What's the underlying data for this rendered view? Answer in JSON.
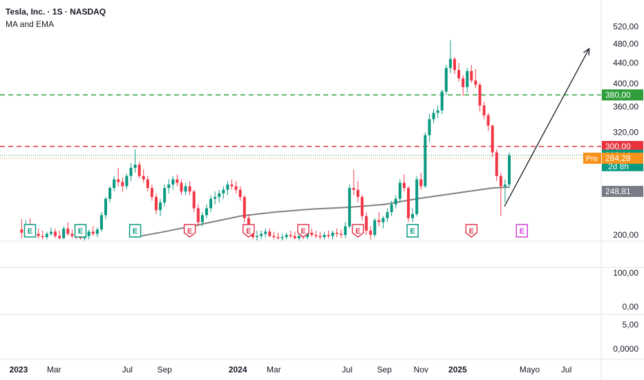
{
  "header": {
    "symbol_line": "Tesla, Inc. · 1S · NASDAQ",
    "indicator_label": "MA and EMA"
  },
  "colors": {
    "up": "#089981",
    "down": "#f23645",
    "ma": "#808080",
    "green_line": "#2e9d3a",
    "red_line": "#e8323c",
    "pre": "#f7931a",
    "earnings_green": "#089981",
    "earnings_red": "#e03a4e",
    "earnings_future": "#d03ed8",
    "last_price_label": "#089981",
    "ma_label": "#787b86"
  },
  "chart_data": {
    "type": "candlestick",
    "title": "Tesla, Inc. · 1S · NASDAQ",
    "interval": "1S",
    "exchange": "NASDAQ",
    "y_scale": "log",
    "ylim": [
      195,
      560
    ],
    "y_ticks": [
      200,
      360,
      400,
      440,
      480,
      520
    ],
    "y_tick_labels": [
      "200,00",
      "360,00",
      "400,00",
      "440,00",
      "480,00",
      "520,00"
    ],
    "y_tick_320": {
      "value": 320,
      "label": "320,00"
    },
    "lower_ticks": [
      "100,00",
      "0,00",
      "5,00",
      "0,0000"
    ],
    "x_labels": [
      {
        "label": "2023",
        "date": "2023-01-01",
        "bold": true
      },
      {
        "label": "Mar",
        "date": "2023-03-01",
        "bold": false
      },
      {
        "label": "Jul",
        "date": "2023-07-01",
        "bold": false
      },
      {
        "label": "Sep",
        "date": "2023-09-01",
        "bold": false
      },
      {
        "label": "2024",
        "date": "2024-01-01",
        "bold": true
      },
      {
        "label": "Mar",
        "date": "2024-03-01",
        "bold": false
      },
      {
        "label": "Jul",
        "date": "2024-07-01",
        "bold": false
      },
      {
        "label": "Sep",
        "date": "2024-09-01",
        "bold": false
      },
      {
        "label": "Nov",
        "date": "2024-11-01",
        "bold": false
      },
      {
        "label": "2025",
        "date": "2025-01-01",
        "bold": true
      },
      {
        "label": "Mayo",
        "date": "2025-05-01",
        "bold": false
      },
      {
        "label": "Jul",
        "date": "2025-07-01",
        "bold": false
      }
    ],
    "x_start": "2022-12-01",
    "x_end": "2025-08-28",
    "horizontal_lines": [
      {
        "value": 380,
        "label": "380,00",
        "color": "#2e9d3a",
        "style": "dashed"
      },
      {
        "value": 300,
        "label": "300,00",
        "color": "#e8323c",
        "style": "dashed"
      }
    ],
    "price_labels": [
      {
        "value": 288.14,
        "label": "288,14",
        "sub": "2d 8h",
        "color": "#089981"
      },
      {
        "value": 284.28,
        "label": "284,28",
        "tag": "Pre",
        "color": "#f7931a"
      },
      {
        "value": 248.81,
        "label": "248,81",
        "color": "#787b86"
      }
    ],
    "arrow": {
      "from": {
        "date": "2025-03-20",
        "value": 228
      },
      "to": {
        "date": "2025-08-08",
        "value": 470
      }
    },
    "candles": [
      [
        "2023-01-06",
        205,
        215,
        197,
        202
      ],
      [
        "2023-01-13",
        202,
        214,
        198,
        210
      ],
      [
        "2023-01-20",
        210,
        216,
        200,
        203
      ],
      [
        "2023-01-27",
        203,
        210,
        199,
        201
      ],
      [
        "2023-02-03",
        201,
        206,
        197,
        199
      ],
      [
        "2023-02-10",
        199,
        204,
        196,
        198
      ],
      [
        "2023-02-17",
        198,
        203,
        196,
        201
      ],
      [
        "2023-02-24",
        201,
        207,
        199,
        203
      ],
      [
        "2023-03-03",
        203,
        206,
        197,
        199
      ],
      [
        "2023-03-10",
        199,
        204,
        196,
        197
      ],
      [
        "2023-03-17",
        197,
        208,
        196,
        206
      ],
      [
        "2023-03-24",
        206,
        212,
        199,
        201
      ],
      [
        "2023-03-31",
        201,
        205,
        197,
        199
      ],
      [
        "2023-04-07",
        199,
        204,
        196,
        198
      ],
      [
        "2023-04-14",
        198,
        203,
        196,
        197
      ],
      [
        "2023-04-21",
        197,
        202,
        195,
        199
      ],
      [
        "2023-04-28",
        199,
        205,
        196,
        203
      ],
      [
        "2023-05-05",
        203,
        208,
        199,
        201
      ],
      [
        "2023-05-12",
        201,
        207,
        198,
        205
      ],
      [
        "2023-05-19",
        205,
        222,
        203,
        219
      ],
      [
        "2023-05-26",
        219,
        238,
        215,
        236
      ],
      [
        "2023-06-02",
        236,
        250,
        232,
        248
      ],
      [
        "2023-06-09",
        248,
        262,
        244,
        258
      ],
      [
        "2023-06-16",
        258,
        272,
        250,
        255
      ],
      [
        "2023-06-23",
        255,
        260,
        244,
        250
      ],
      [
        "2023-06-30",
        250,
        265,
        247,
        262
      ],
      [
        "2023-07-07",
        262,
        278,
        256,
        272
      ],
      [
        "2023-07-14",
        272,
        296,
        266,
        276
      ],
      [
        "2023-07-21",
        276,
        280,
        259,
        262
      ],
      [
        "2023-07-28",
        262,
        270,
        254,
        258
      ],
      [
        "2023-08-04",
        258,
        262,
        244,
        248
      ],
      [
        "2023-08-11",
        248,
        252,
        234,
        238
      ],
      [
        "2023-08-18",
        238,
        242,
        220,
        224
      ],
      [
        "2023-08-25",
        224,
        236,
        218,
        232
      ],
      [
        "2023-09-01",
        232,
        252,
        228,
        248
      ],
      [
        "2023-09-08",
        248,
        258,
        242,
        252
      ],
      [
        "2023-09-15",
        252,
        262,
        246,
        258
      ],
      [
        "2023-09-22",
        258,
        264,
        250,
        254
      ],
      [
        "2023-09-29",
        254,
        258,
        240,
        244
      ],
      [
        "2023-10-06",
        244,
        254,
        240,
        250
      ],
      [
        "2023-10-13",
        250,
        256,
        240,
        244
      ],
      [
        "2023-10-20",
        244,
        246,
        222,
        226
      ],
      [
        "2023-10-27",
        226,
        230,
        208,
        212
      ],
      [
        "2023-11-03",
        212,
        222,
        208,
        219
      ],
      [
        "2023-11-10",
        219,
        230,
        216,
        226
      ],
      [
        "2023-11-17",
        226,
        240,
        222,
        236
      ],
      [
        "2023-11-24",
        236,
        244,
        230,
        238
      ],
      [
        "2023-12-01",
        238,
        246,
        232,
        242
      ],
      [
        "2023-12-08",
        242,
        250,
        236,
        246
      ],
      [
        "2023-12-15",
        246,
        256,
        240,
        252
      ],
      [
        "2023-12-22",
        252,
        258,
        246,
        250
      ],
      [
        "2023-12-29",
        250,
        256,
        242,
        246
      ],
      [
        "2024-01-05",
        246,
        250,
        234,
        238
      ],
      [
        "2024-01-12",
        238,
        240,
        212,
        216
      ],
      [
        "2024-01-19",
        216,
        220,
        200,
        204
      ],
      [
        "2024-01-26",
        204,
        208,
        196,
        198
      ],
      [
        "2024-02-02",
        198,
        204,
        195,
        199
      ],
      [
        "2024-02-09",
        199,
        204,
        196,
        201
      ],
      [
        "2024-02-16",
        201,
        206,
        198,
        203
      ],
      [
        "2024-02-23",
        203,
        206,
        198,
        199
      ],
      [
        "2024-03-01",
        199,
        203,
        196,
        198
      ],
      [
        "2024-03-08",
        198,
        202,
        196,
        197
      ],
      [
        "2024-03-15",
        197,
        201,
        195,
        198
      ],
      [
        "2024-03-22",
        198,
        202,
        196,
        200
      ],
      [
        "2024-03-29",
        200,
        204,
        197,
        199
      ],
      [
        "2024-04-05",
        199,
        203,
        196,
        197
      ],
      [
        "2024-04-12",
        197,
        202,
        195,
        199
      ],
      [
        "2024-04-19",
        199,
        203,
        196,
        198
      ],
      [
        "2024-04-26",
        198,
        204,
        196,
        202
      ],
      [
        "2024-05-03",
        202,
        206,
        198,
        200
      ],
      [
        "2024-05-10",
        200,
        204,
        197,
        199
      ],
      [
        "2024-05-17",
        199,
        203,
        196,
        198
      ],
      [
        "2024-05-24",
        198,
        203,
        196,
        200
      ],
      [
        "2024-05-31",
        200,
        204,
        197,
        199
      ],
      [
        "2024-06-07",
        199,
        204,
        196,
        202
      ],
      [
        "2024-06-14",
        202,
        206,
        198,
        201
      ],
      [
        "2024-06-21",
        201,
        205,
        197,
        200
      ],
      [
        "2024-06-28",
        200,
        212,
        197,
        208
      ],
      [
        "2024-07-05",
        208,
        252,
        206,
        248
      ],
      [
        "2024-07-12",
        248,
        270,
        240,
        246
      ],
      [
        "2024-07-19",
        246,
        256,
        232,
        238
      ],
      [
        "2024-07-26",
        238,
        240,
        214,
        218
      ],
      [
        "2024-08-02",
        218,
        222,
        200,
        204
      ],
      [
        "2024-08-09",
        204,
        208,
        196,
        200
      ],
      [
        "2024-08-16",
        200,
        216,
        198,
        214
      ],
      [
        "2024-08-23",
        214,
        222,
        208,
        212
      ],
      [
        "2024-08-30",
        212,
        218,
        206,
        216
      ],
      [
        "2024-09-06",
        216,
        226,
        212,
        222
      ],
      [
        "2024-09-13",
        222,
        234,
        218,
        230
      ],
      [
        "2024-09-20",
        230,
        240,
        226,
        236
      ],
      [
        "2024-09-27",
        236,
        258,
        232,
        254
      ],
      [
        "2024-10-04",
        254,
        264,
        244,
        248
      ],
      [
        "2024-10-11",
        248,
        250,
        212,
        216
      ],
      [
        "2024-10-18",
        216,
        226,
        212,
        220
      ],
      [
        "2024-10-25",
        220,
        262,
        218,
        258
      ],
      [
        "2024-11-01",
        258,
        266,
        246,
        250
      ],
      [
        "2024-11-08",
        250,
        320,
        248,
        316
      ],
      [
        "2024-11-15",
        316,
        348,
        306,
        340
      ],
      [
        "2024-11-22",
        340,
        356,
        334,
        350
      ],
      [
        "2024-11-29",
        350,
        362,
        342,
        354
      ],
      [
        "2024-12-06",
        354,
        390,
        348,
        386
      ],
      [
        "2024-12-13",
        386,
        436,
        380,
        430
      ],
      [
        "2024-12-20",
        430,
        488,
        420,
        448
      ],
      [
        "2024-12-27",
        448,
        452,
        418,
        426
      ],
      [
        "2025-01-03",
        426,
        440,
        404,
        410
      ],
      [
        "2025-01-10",
        410,
        416,
        378,
        394
      ],
      [
        "2025-01-17",
        394,
        430,
        384,
        424
      ],
      [
        "2025-01-24",
        424,
        436,
        402,
        406
      ],
      [
        "2025-01-31",
        406,
        428,
        392,
        398
      ],
      [
        "2025-02-07",
        398,
        402,
        352,
        362
      ],
      [
        "2025-02-14",
        362,
        368,
        340,
        346
      ],
      [
        "2025-02-21",
        346,
        350,
        322,
        330
      ],
      [
        "2025-02-28",
        330,
        332,
        286,
        292
      ],
      [
        "2025-03-07",
        292,
        296,
        256,
        262
      ],
      [
        "2025-03-14",
        262,
        266,
        218,
        250
      ],
      [
        "2025-03-21",
        250,
        258,
        232,
        252
      ],
      [
        "2025-03-28",
        252,
        292,
        248,
        288
      ]
    ],
    "ma_series": [
      [
        "2023-07-14",
        198
      ],
      [
        "2023-09-01",
        203
      ],
      [
        "2023-11-01",
        210
      ],
      [
        "2024-01-05",
        218
      ],
      [
        "2024-03-01",
        222
      ],
      [
        "2024-05-01",
        225
      ],
      [
        "2024-07-05",
        227
      ],
      [
        "2024-09-01",
        230
      ],
      [
        "2024-10-25",
        236
      ],
      [
        "2024-12-06",
        240
      ],
      [
        "2025-01-17",
        244
      ],
      [
        "2025-02-28",
        248
      ],
      [
        "2025-03-28",
        249
      ]
    ],
    "earnings": [
      {
        "date": "2023-01-20",
        "color": "#089981",
        "label": "E"
      },
      {
        "date": "2023-04-14",
        "color": "#089981",
        "label": "E"
      },
      {
        "date": "2023-07-14",
        "color": "#089981",
        "label": "E"
      },
      {
        "date": "2023-10-13",
        "color": "#e03a4e",
        "label": "E"
      },
      {
        "date": "2024-01-19",
        "color": "#e03a4e",
        "label": "E"
      },
      {
        "date": "2024-04-19",
        "color": "#e03a4e",
        "label": "E"
      },
      {
        "date": "2024-07-19",
        "color": "#e03a4e",
        "label": "E"
      },
      {
        "date": "2024-10-18",
        "color": "#089981",
        "label": "E"
      },
      {
        "date": "2025-01-24",
        "color": "#e03a4e",
        "label": "E"
      },
      {
        "date": "2025-04-18",
        "color": "#d03ed8",
        "label": "E"
      }
    ]
  }
}
